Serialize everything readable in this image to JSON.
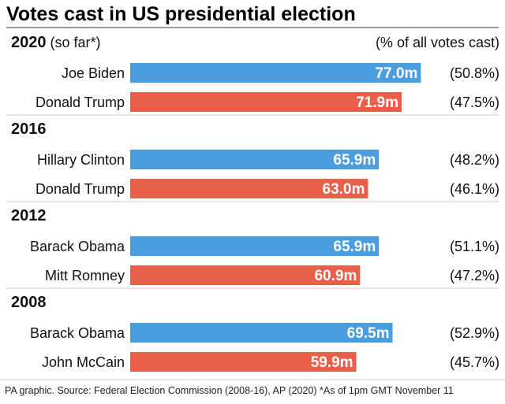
{
  "title": "Votes cast in US presidential election",
  "source": "PA graphic. Source: Federal Election Commission (2008-16), AP (2020) *As of 1pm GMT November 11",
  "colors": {
    "democrat": "#4a9ede",
    "republican": "#e8604a",
    "text": "#111111",
    "rule": "#333333",
    "divider": "#cccccc"
  },
  "chart_data": {
    "type": "bar",
    "orientation": "horizontal",
    "unit": "m",
    "xlim": [
      0,
      85
    ],
    "secondary_label": "(% of all votes cast)",
    "groups": [
      {
        "label": "2020",
        "note": "(so far*)",
        "bars": [
          {
            "name": "Joe Biden",
            "value": 77.0,
            "value_label": "77.0m",
            "pct_label": "(50.8%)",
            "party": "democrat"
          },
          {
            "name": "Donald Trump",
            "value": 71.9,
            "value_label": "71.9m",
            "pct_label": "(47.5%)",
            "party": "republican"
          }
        ]
      },
      {
        "label": "2016",
        "note": "",
        "bars": [
          {
            "name": "Hillary Clinton",
            "value": 65.9,
            "value_label": "65.9m",
            "pct_label": "(48.2%)",
            "party": "democrat"
          },
          {
            "name": "Donald Trump",
            "value": 63.0,
            "value_label": "63.0m",
            "pct_label": "(46.1%)",
            "party": "republican"
          }
        ]
      },
      {
        "label": "2012",
        "note": "",
        "bars": [
          {
            "name": "Barack Obama",
            "value": 65.9,
            "value_label": "65.9m",
            "pct_label": "(51.1%)",
            "party": "democrat"
          },
          {
            "name": "Mitt Romney",
            "value": 60.9,
            "value_label": "60.9m",
            "pct_label": "(47.2%)",
            "party": "republican"
          }
        ]
      },
      {
        "label": "2008",
        "note": "",
        "bars": [
          {
            "name": "Barack Obama",
            "value": 69.5,
            "value_label": "69.5m",
            "pct_label": "(52.9%)",
            "party": "democrat"
          },
          {
            "name": "John McCain",
            "value": 59.9,
            "value_label": "59.9m",
            "pct_label": "(45.7%)",
            "party": "republican"
          }
        ]
      }
    ]
  }
}
